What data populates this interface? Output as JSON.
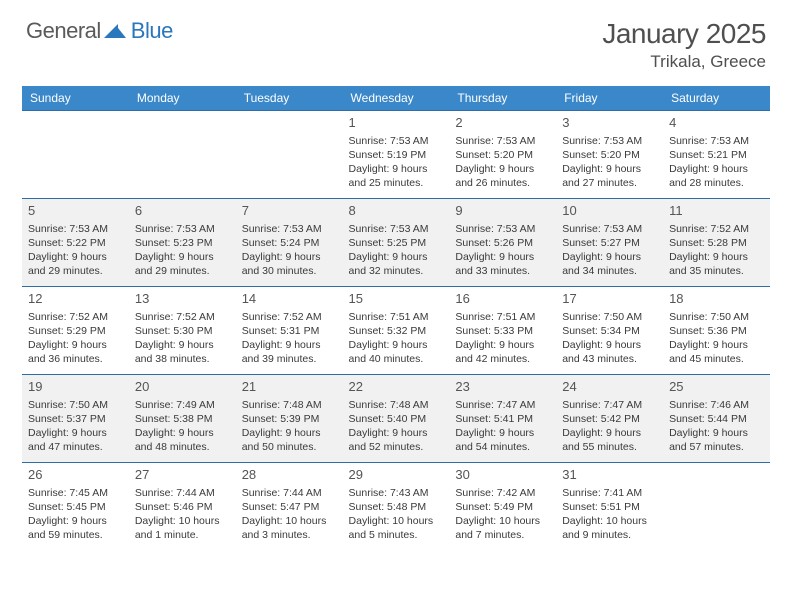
{
  "logo": {
    "part1": "General",
    "part2": "Blue"
  },
  "title": "January 2025",
  "location": "Trikala, Greece",
  "colors": {
    "header_bg": "#3a87c9",
    "header_text": "#ffffff",
    "row_border": "#2f6da8",
    "alt_row_bg": "#f1f1f1",
    "body_text": "#3a3a3a",
    "title_text": "#4f4f4f"
  },
  "weekdays": [
    "Sunday",
    "Monday",
    "Tuesday",
    "Wednesday",
    "Thursday",
    "Friday",
    "Saturday"
  ],
  "weeks": [
    [
      null,
      null,
      null,
      {
        "d": "1",
        "sr": "7:53 AM",
        "ss": "5:19 PM",
        "dl": "9 hours and 25 minutes."
      },
      {
        "d": "2",
        "sr": "7:53 AM",
        "ss": "5:20 PM",
        "dl": "9 hours and 26 minutes."
      },
      {
        "d": "3",
        "sr": "7:53 AM",
        "ss": "5:20 PM",
        "dl": "9 hours and 27 minutes."
      },
      {
        "d": "4",
        "sr": "7:53 AM",
        "ss": "5:21 PM",
        "dl": "9 hours and 28 minutes."
      }
    ],
    [
      {
        "d": "5",
        "sr": "7:53 AM",
        "ss": "5:22 PM",
        "dl": "9 hours and 29 minutes."
      },
      {
        "d": "6",
        "sr": "7:53 AM",
        "ss": "5:23 PM",
        "dl": "9 hours and 29 minutes."
      },
      {
        "d": "7",
        "sr": "7:53 AM",
        "ss": "5:24 PM",
        "dl": "9 hours and 30 minutes."
      },
      {
        "d": "8",
        "sr": "7:53 AM",
        "ss": "5:25 PM",
        "dl": "9 hours and 32 minutes."
      },
      {
        "d": "9",
        "sr": "7:53 AM",
        "ss": "5:26 PM",
        "dl": "9 hours and 33 minutes."
      },
      {
        "d": "10",
        "sr": "7:53 AM",
        "ss": "5:27 PM",
        "dl": "9 hours and 34 minutes."
      },
      {
        "d": "11",
        "sr": "7:52 AM",
        "ss": "5:28 PM",
        "dl": "9 hours and 35 minutes."
      }
    ],
    [
      {
        "d": "12",
        "sr": "7:52 AM",
        "ss": "5:29 PM",
        "dl": "9 hours and 36 minutes."
      },
      {
        "d": "13",
        "sr": "7:52 AM",
        "ss": "5:30 PM",
        "dl": "9 hours and 38 minutes."
      },
      {
        "d": "14",
        "sr": "7:52 AM",
        "ss": "5:31 PM",
        "dl": "9 hours and 39 minutes."
      },
      {
        "d": "15",
        "sr": "7:51 AM",
        "ss": "5:32 PM",
        "dl": "9 hours and 40 minutes."
      },
      {
        "d": "16",
        "sr": "7:51 AM",
        "ss": "5:33 PM",
        "dl": "9 hours and 42 minutes."
      },
      {
        "d": "17",
        "sr": "7:50 AM",
        "ss": "5:34 PM",
        "dl": "9 hours and 43 minutes."
      },
      {
        "d": "18",
        "sr": "7:50 AM",
        "ss": "5:36 PM",
        "dl": "9 hours and 45 minutes."
      }
    ],
    [
      {
        "d": "19",
        "sr": "7:50 AM",
        "ss": "5:37 PM",
        "dl": "9 hours and 47 minutes."
      },
      {
        "d": "20",
        "sr": "7:49 AM",
        "ss": "5:38 PM",
        "dl": "9 hours and 48 minutes."
      },
      {
        "d": "21",
        "sr": "7:48 AM",
        "ss": "5:39 PM",
        "dl": "9 hours and 50 minutes."
      },
      {
        "d": "22",
        "sr": "7:48 AM",
        "ss": "5:40 PM",
        "dl": "9 hours and 52 minutes."
      },
      {
        "d": "23",
        "sr": "7:47 AM",
        "ss": "5:41 PM",
        "dl": "9 hours and 54 minutes."
      },
      {
        "d": "24",
        "sr": "7:47 AM",
        "ss": "5:42 PM",
        "dl": "9 hours and 55 minutes."
      },
      {
        "d": "25",
        "sr": "7:46 AM",
        "ss": "5:44 PM",
        "dl": "9 hours and 57 minutes."
      }
    ],
    [
      {
        "d": "26",
        "sr": "7:45 AM",
        "ss": "5:45 PM",
        "dl": "9 hours and 59 minutes."
      },
      {
        "d": "27",
        "sr": "7:44 AM",
        "ss": "5:46 PM",
        "dl": "10 hours and 1 minute."
      },
      {
        "d": "28",
        "sr": "7:44 AM",
        "ss": "5:47 PM",
        "dl": "10 hours and 3 minutes."
      },
      {
        "d": "29",
        "sr": "7:43 AM",
        "ss": "5:48 PM",
        "dl": "10 hours and 5 minutes."
      },
      {
        "d": "30",
        "sr": "7:42 AM",
        "ss": "5:49 PM",
        "dl": "10 hours and 7 minutes."
      },
      {
        "d": "31",
        "sr": "7:41 AM",
        "ss": "5:51 PM",
        "dl": "10 hours and 9 minutes."
      },
      null
    ]
  ],
  "labels": {
    "sunrise": "Sunrise:",
    "sunset": "Sunset:",
    "daylight": "Daylight:"
  }
}
